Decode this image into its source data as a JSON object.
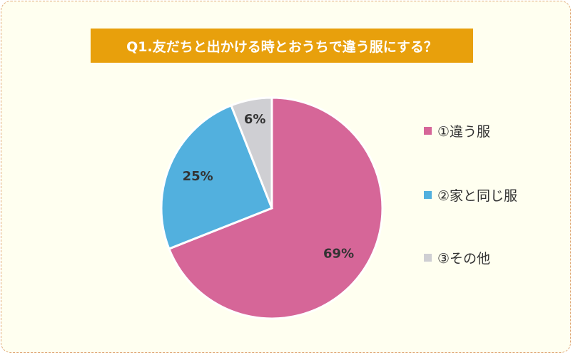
{
  "title": "Q1.友だちと出かける時とおうちで違う服にする？",
  "chart_data": {
    "type": "pie",
    "title": "Q1.友だちと出かける時とおうちで違う服にする？",
    "slices": [
      {
        "label": "①違う服",
        "value": 69,
        "display": "69%",
        "color": "#d66698"
      },
      {
        "label": "②家と同じ服",
        "value": 25,
        "display": "25%",
        "color": "#52b0de"
      },
      {
        "label": "③その他",
        "value": 6,
        "display": "6%",
        "color": "#cfcfd3"
      }
    ],
    "start_angle": "12 o'clock",
    "direction": "clockwise",
    "legend_position": "right"
  }
}
